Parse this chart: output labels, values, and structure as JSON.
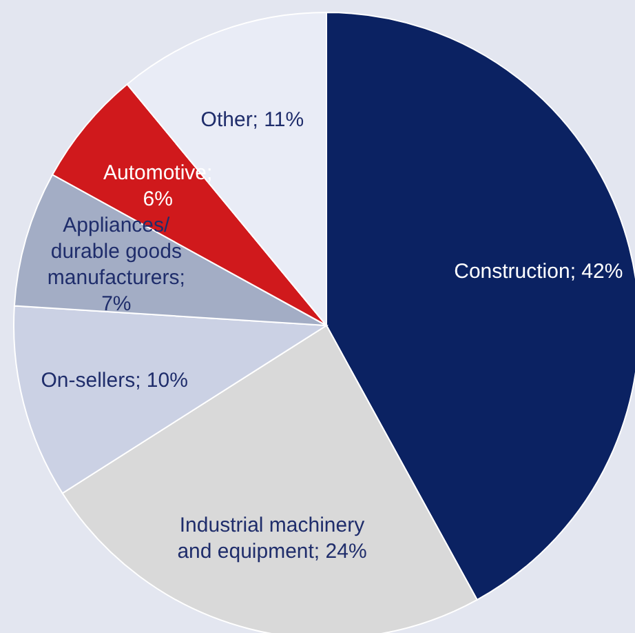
{
  "chart_data": {
    "type": "pie",
    "categories": [
      "Construction",
      "Industrial machinery and equipment",
      "On-sellers",
      "Appliances/ durable goods manufacturers",
      "Automotive",
      "Other"
    ],
    "values": [
      42,
      24,
      10,
      7,
      6,
      11
    ],
    "value_labels": [
      "; 42%",
      "; 24%",
      "; 10%",
      "; 7%",
      "; 6%",
      "; 11%"
    ],
    "colors": [
      "#0b2262",
      "#d9d9d9",
      "#cbd1e4",
      "#a3adc5",
      "#d0191c",
      "#e9ecf6"
    ]
  }
}
